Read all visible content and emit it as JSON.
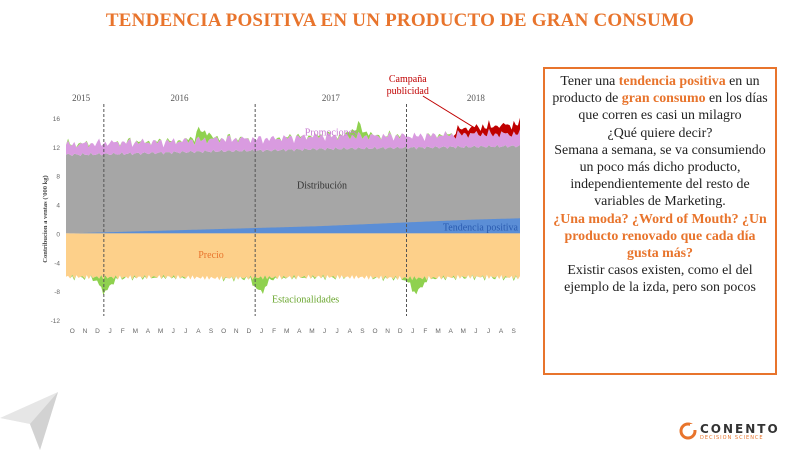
{
  "title": "TENDENCIA POSITIVA EN UN PRODUCTO DE GRAN CONSUMO",
  "textbox": {
    "p1_a": "Tener una ",
    "p1_b": "tendencia positiva",
    "p1_c": " en un producto de ",
    "p1_d": "gran consumo",
    "p1_e": " en los días que corren es casi un milagro",
    "p2": "¿Qué quiere decir?",
    "p3": "Semana a semana, se va consumiendo un poco más dicho producto, independientemente del resto de variables de Marketing.",
    "p4": "¿Una moda? ¿Word of Mouth? ¿Un producto renovado que cada día gusta más?",
    "p5": "Existir casos existen, como el del ejemplo de la izda, pero son pocos"
  },
  "logo": {
    "name": "CONENTO",
    "tagline": "DECISION SCIENCE"
  },
  "colors": {
    "accent": "#e8742c",
    "distribucion": "#a6a6a6",
    "promociones": "#d99be0",
    "precio": "#fdd08a",
    "tendencia": "#5b8ed6",
    "estacionalidades": "#8fd14f",
    "campana": "#c00000"
  },
  "chart_data": {
    "type": "area",
    "ylabel": "Contribucion a ventas ('000 kg)",
    "ylim": [
      -12,
      16
    ],
    "yticks": [
      -12,
      -8,
      -4,
      0,
      4,
      8,
      12,
      16
    ],
    "years": [
      "2015",
      "2016",
      "2017",
      "2018"
    ],
    "month_ticks": [
      "O",
      "N",
      "D",
      "J",
      "F",
      "M",
      "A",
      "M",
      "J",
      "J",
      "A",
      "S",
      "O",
      "N",
      "D",
      "J",
      "F",
      "M",
      "A",
      "M",
      "J",
      "J",
      "A",
      "S",
      "O",
      "N",
      "D",
      "J",
      "F",
      "M",
      "A",
      "M",
      "J",
      "J",
      "A",
      "S"
    ],
    "year_dividers_after_month_index": [
      2.5,
      14.5,
      26.5
    ],
    "series": [
      {
        "name": "Distribución",
        "values": [
          10.0,
          10.1,
          10.3,
          10.5,
          10.6,
          10.8,
          10.9,
          11.0,
          11.1,
          11.2
        ]
      },
      {
        "name": "Tendencia positiva",
        "values": [
          0.0,
          0.2,
          0.4,
          0.6,
          0.8,
          1.0,
          1.3,
          1.6,
          1.9,
          2.1
        ]
      },
      {
        "name": "Promociones",
        "values": [
          1.4,
          1.6,
          1.5,
          1.7,
          1.6,
          1.8,
          1.7,
          1.6,
          1.8,
          1.7
        ]
      },
      {
        "name": "Precio",
        "values": [
          -6.0,
          -6.1,
          -6.0,
          -6.2,
          -6.1,
          -6.0,
          -6.1,
          -6.2,
          -6.0,
          -6.1
        ]
      },
      {
        "name": "Estacionalidades",
        "values": [
          -1.0,
          -0.6,
          0.8,
          -0.5,
          0.9,
          -0.7,
          0.8,
          -0.6,
          0.7,
          -0.5
        ]
      },
      {
        "name": "Campaña publicidad",
        "values": [
          0,
          0,
          0,
          0,
          0,
          0,
          0,
          0,
          1.0,
          1.6
        ]
      }
    ],
    "annotations": {
      "promociones": "Promociones",
      "distribucion": "Distribución",
      "tendencia": "Tendencia positiva",
      "precio": "Precio",
      "estacionalidades": "Estacionalidades",
      "campana_line1": "Campaña",
      "campana_line2": "publicidad"
    }
  }
}
